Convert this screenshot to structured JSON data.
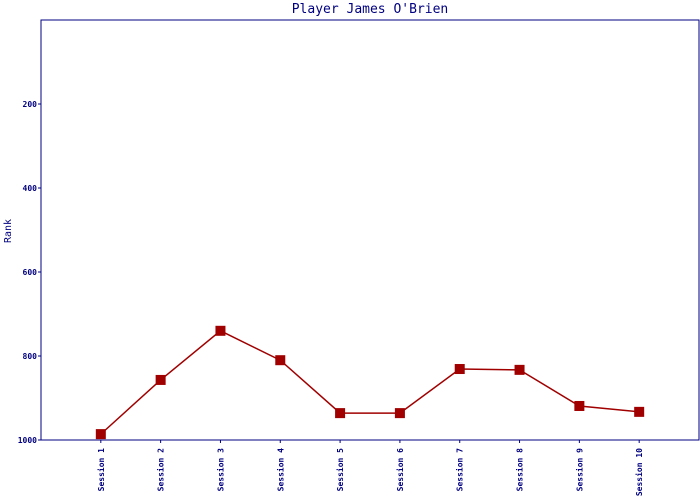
{
  "chart_data": {
    "type": "line",
    "title": "Player James O'Brien",
    "y_label": "Rank",
    "categories": [
      "Session 1",
      "Session 2",
      "Session 3",
      "Session 4",
      "Session 5",
      "Session 6",
      "Session 7",
      "Session 8",
      "Session 9",
      "Session 10"
    ],
    "series": [
      {
        "name": "Rank",
        "color": "#a00000",
        "values": [
          986,
          857,
          740,
          810,
          936,
          936,
          831,
          833,
          919,
          933
        ]
      }
    ],
    "ylim": [
      0,
      1000
    ],
    "yticks": [
      200,
      400,
      600,
      800,
      1000
    ],
    "y_inverted": true,
    "grid": false
  }
}
